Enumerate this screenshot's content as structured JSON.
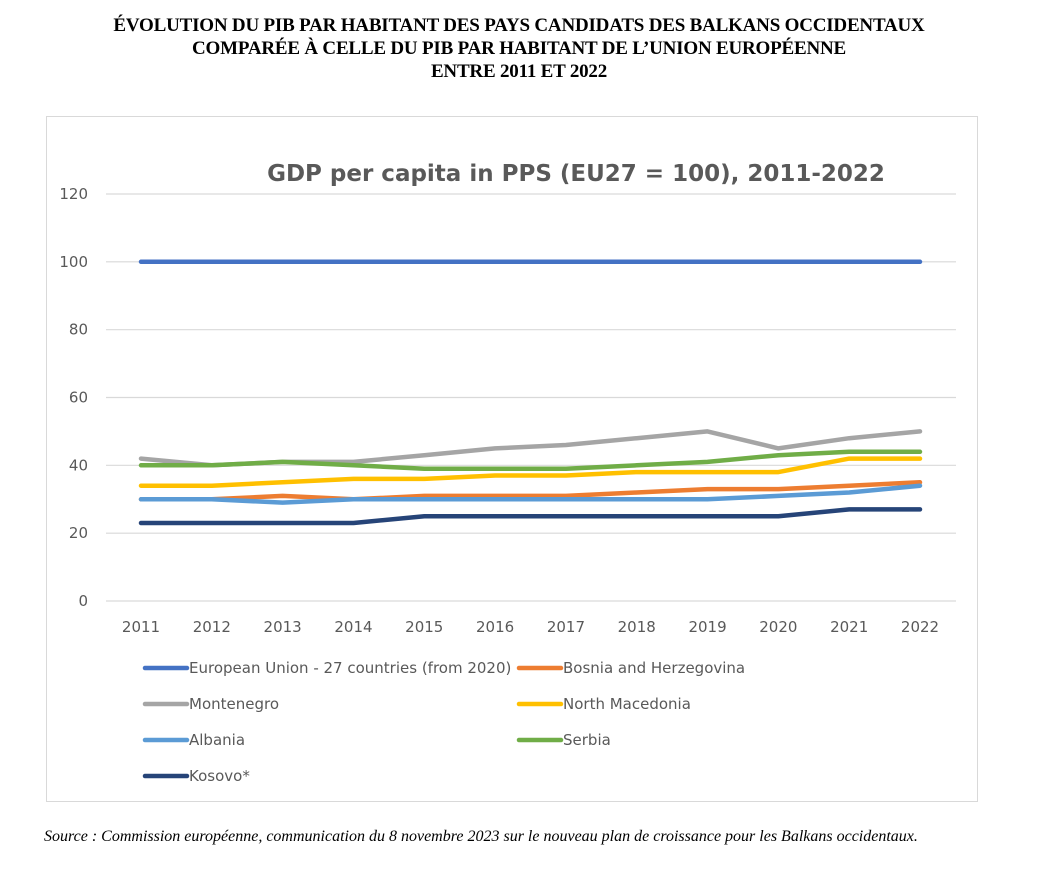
{
  "document": {
    "title_lines": [
      "ÉVOLUTION DU PIB PAR HABITANT DES PAYS CANDIDATS DES BALKANS OCCIDENTAUX",
      "COMPARÉE À CELLE DU PIB PAR HABITANT DE L’UNION EUROPÉENNE",
      "ENTRE 2011 ET 2022"
    ],
    "source": "Source : Commission européenne, communication du 8 novembre 2023 sur le nouveau plan de croissance pour les Balkans occidentaux."
  },
  "chart_data": {
    "type": "line",
    "title": "GDP per capita in PPS (EU27 = 100), 2011-2022",
    "xlabel": "",
    "ylabel": "",
    "x": [
      "2011",
      "2012",
      "2013",
      "2014",
      "2015",
      "2016",
      "2017",
      "2018",
      "2019",
      "2020",
      "2021",
      "2022"
    ],
    "ylim": [
      0,
      120
    ],
    "yticks": [
      0,
      20,
      40,
      60,
      80,
      100,
      120
    ],
    "grid": true,
    "legend": "bottom",
    "series": [
      {
        "name": "European Union - 27 countries (from 2020)",
        "color": "#4472C4",
        "values": [
          100,
          100,
          100,
          100,
          100,
          100,
          100,
          100,
          100,
          100,
          100,
          100
        ]
      },
      {
        "name": "Bosnia and Herzegovina",
        "color": "#ED7D31",
        "values": [
          30,
          30,
          31,
          30,
          31,
          31,
          31,
          32,
          33,
          33,
          34,
          35
        ]
      },
      {
        "name": "Montenegro",
        "color": "#A5A5A5",
        "values": [
          42,
          40,
          41,
          41,
          43,
          45,
          46,
          48,
          50,
          45,
          48,
          50
        ]
      },
      {
        "name": "North Macedonia",
        "color": "#FFC000",
        "values": [
          34,
          34,
          35,
          36,
          36,
          37,
          37,
          38,
          38,
          38,
          42,
          42
        ]
      },
      {
        "name": "Albania",
        "color": "#5B9BD5",
        "values": [
          30,
          30,
          29,
          30,
          30,
          30,
          30,
          30,
          30,
          31,
          32,
          34
        ]
      },
      {
        "name": "Serbia",
        "color": "#70AD47",
        "values": [
          40,
          40,
          41,
          40,
          39,
          39,
          39,
          40,
          41,
          43,
          44,
          44
        ]
      },
      {
        "name": "Kosovo*",
        "color": "#264478",
        "values": [
          23,
          23,
          23,
          23,
          25,
          25,
          25,
          25,
          25,
          25,
          27,
          27
        ]
      }
    ]
  }
}
